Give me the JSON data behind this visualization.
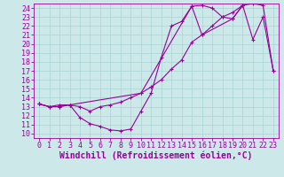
{
  "xlabel": "Windchill (Refroidissement éolien,°C)",
  "bg_color": "#cce8e8",
  "line_color": "#990099",
  "xlim": [
    -0.5,
    23.5
  ],
  "ylim": [
    9.5,
    24.5
  ],
  "xticks": [
    0,
    1,
    2,
    3,
    4,
    5,
    6,
    7,
    8,
    9,
    10,
    11,
    12,
    13,
    14,
    15,
    16,
    17,
    18,
    19,
    20,
    21,
    22,
    23
  ],
  "yticks": [
    10,
    11,
    12,
    13,
    14,
    15,
    16,
    17,
    18,
    19,
    20,
    21,
    22,
    23,
    24
  ],
  "line1_x": [
    0,
    1,
    2,
    3,
    4,
    5,
    6,
    7,
    8,
    9,
    10,
    11,
    12,
    13,
    14,
    15,
    16,
    17,
    18,
    19,
    20
  ],
  "line1_y": [
    13.3,
    13.0,
    13.0,
    13.2,
    11.8,
    11.1,
    10.8,
    10.4,
    10.3,
    10.5,
    12.5,
    14.5,
    18.5,
    22.0,
    22.5,
    24.2,
    24.3,
    24.0,
    23.0,
    22.8,
    24.3
  ],
  "line2_x": [
    0,
    1,
    2,
    3,
    4,
    5,
    6,
    7,
    8,
    9,
    10,
    11,
    12,
    13,
    14,
    15,
    16,
    17,
    18,
    19,
    20,
    21,
    22,
    23
  ],
  "line2_y": [
    13.3,
    13.0,
    13.0,
    13.2,
    13.0,
    12.5,
    13.0,
    13.2,
    13.5,
    14.0,
    14.5,
    15.2,
    16.0,
    17.2,
    18.2,
    20.2,
    21.0,
    22.0,
    23.0,
    23.5,
    24.3,
    24.5,
    24.3,
    17.0
  ],
  "line3_x": [
    0,
    1,
    2,
    3,
    10,
    15,
    16,
    19,
    20,
    21,
    22,
    23
  ],
  "line3_y": [
    13.3,
    13.0,
    13.2,
    13.2,
    14.5,
    24.2,
    21.0,
    22.8,
    24.3,
    20.5,
    23.0,
    17.0
  ],
  "grid_color": "#a8d4d4",
  "tick_fontsize": 6,
  "xlabel_fontsize": 7,
  "marker_size": 3,
  "linewidth": 0.8
}
